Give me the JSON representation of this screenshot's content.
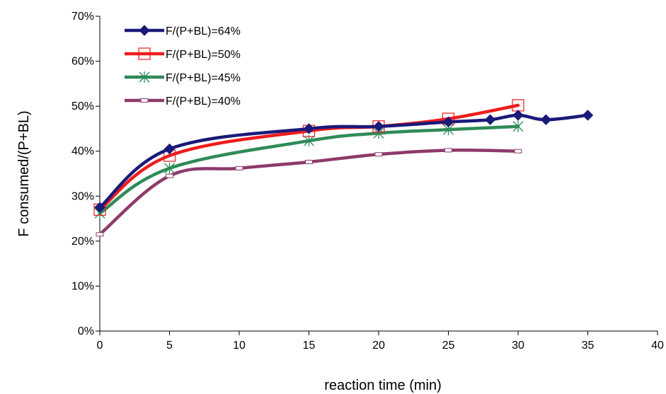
{
  "chart_data": {
    "type": "line",
    "title": "",
    "xlabel": "reaction time (min)",
    "ylabel": "F consumed/(P+BL)",
    "xlim": [
      0,
      40
    ],
    "ylim": [
      0,
      0.7
    ],
    "x_ticks": [
      "0",
      "5",
      "10",
      "15",
      "20",
      "25",
      "30",
      "35",
      "40"
    ],
    "y_ticks": [
      "0%",
      "10%",
      "20%",
      "30%",
      "40%",
      "50%",
      "60%",
      "70%"
    ],
    "x_tick_values": [
      0,
      5,
      10,
      15,
      20,
      25,
      30,
      35,
      40
    ],
    "y_tick_values": [
      0,
      0.1,
      0.2,
      0.3,
      0.4,
      0.5,
      0.6,
      0.7
    ],
    "grid": false,
    "legend_position": "top-left",
    "series": [
      {
        "name": "F/(P+BL)=64%",
        "color": "#1a1a7a",
        "marker": "diamond",
        "points": [
          [
            0,
            0.275
          ],
          [
            5,
            0.405
          ],
          [
            15,
            0.45
          ],
          [
            20,
            0.455
          ],
          [
            25,
            0.465
          ],
          [
            28,
            0.47
          ],
          [
            30,
            0.48
          ],
          [
            32,
            0.47
          ],
          [
            35,
            0.48
          ]
        ]
      },
      {
        "name": "F/(P+BL)=50%",
        "color": "#ee1c1c",
        "marker": "square",
        "points": [
          [
            0,
            0.27
          ],
          [
            5,
            0.39
          ],
          [
            15,
            0.445
          ],
          [
            20,
            0.455
          ],
          [
            25,
            0.472
          ],
          [
            30,
            0.502
          ]
        ]
      },
      {
        "name": "F/(P+BL)=45%",
        "color": "#2e8b57",
        "marker": "asterisk",
        "points": [
          [
            0,
            0.262
          ],
          [
            5,
            0.362
          ],
          [
            15,
            0.423
          ],
          [
            20,
            0.44
          ],
          [
            25,
            0.448
          ],
          [
            30,
            0.455
          ]
        ]
      },
      {
        "name": "F/(P+BL)=40%",
        "color": "#8e3a6a",
        "marker": "dash",
        "points": [
          [
            0,
            0.215
          ],
          [
            5,
            0.345
          ],
          [
            10,
            0.362
          ],
          [
            15,
            0.376
          ],
          [
            20,
            0.393
          ],
          [
            25,
            0.402
          ],
          [
            30,
            0.4
          ]
        ]
      }
    ]
  }
}
